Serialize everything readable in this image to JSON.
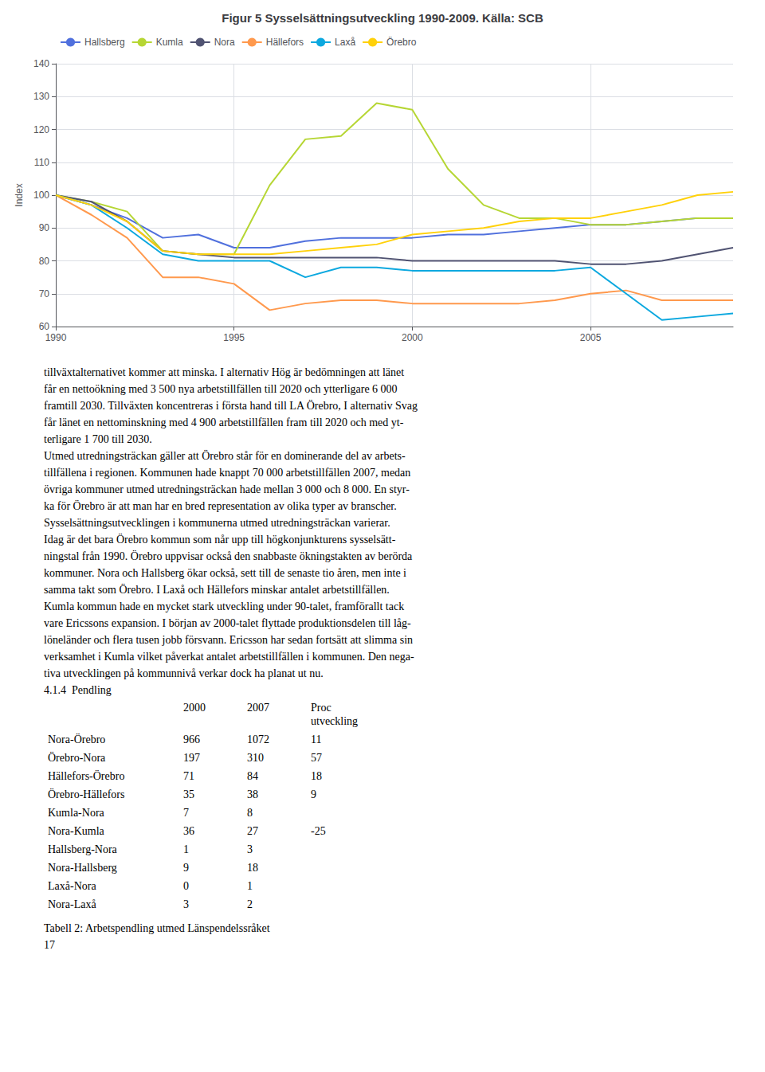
{
  "chart_data": {
    "type": "line",
    "title": "Figur 5 Sysselsättningsutveckling 1990-2009. Källa: SCB",
    "y_label": "Index",
    "x": [
      1990,
      1991,
      1992,
      1993,
      1994,
      1995,
      1996,
      1997,
      1998,
      1999,
      2000,
      2001,
      2002,
      2003,
      2004,
      2005,
      2006,
      2007,
      2008,
      2009
    ],
    "series": [
      {
        "name": "Hallsberg",
        "values": [
          100,
          97,
          93,
          87,
          88,
          84,
          84,
          86,
          87,
          87,
          87,
          88,
          88,
          89,
          90,
          91,
          91,
          92,
          93,
          93
        ]
      },
      {
        "name": "Kumla",
        "values": [
          100,
          98,
          95,
          83,
          82,
          82,
          103,
          117,
          118,
          128,
          126,
          108,
          97,
          93,
          93,
          91,
          91,
          92,
          93,
          93
        ]
      },
      {
        "name": "Nora",
        "values": [
          100,
          98,
          92,
          83,
          82,
          81,
          81,
          81,
          81,
          81,
          80,
          80,
          80,
          80,
          80,
          79,
          79,
          80,
          82,
          84
        ]
      },
      {
        "name": "Hällefors",
        "values": [
          100,
          94,
          87,
          75,
          75,
          73,
          65,
          67,
          68,
          68,
          67,
          67,
          67,
          67,
          68,
          70,
          71,
          68,
          68,
          68
        ]
      },
      {
        "name": "Laxå",
        "values": [
          100,
          97,
          90,
          82,
          80,
          80,
          80,
          75,
          78,
          78,
          77,
          77,
          77,
          77,
          77,
          78,
          70,
          62,
          63,
          64
        ]
      },
      {
        "name": "Örebro",
        "values": [
          100,
          97,
          92,
          83,
          82,
          82,
          82,
          83,
          84,
          85,
          88,
          89,
          90,
          92,
          93,
          93,
          95,
          97,
          100,
          101
        ]
      }
    ],
    "xlim": [
      1990,
      2009
    ],
    "xticks": [
      1990,
      1995,
      2000,
      2005
    ],
    "ylim": [
      60,
      140
    ],
    "yticks": [
      60,
      70,
      80,
      90,
      100,
      110,
      120,
      130,
      140
    ],
    "grid": true,
    "legend": "upper left",
    "annotations": [
      "tillväxtalternativet kommer att minska. I alternativ Hög är bedömningen att länet",
      "får en nettoökning med 3 500 nya arbetstillfällen till 2020 och ytterligare 6 000",
      "framtill 2030. Tillväxten koncentreras i första hand till LA Örebro, I alternativ Svag",
      "får länet en nettominskning med 4 900 arbetstillfällen fram till 2020 och med yt-",
      "terligare 1 700 till 2030.",
      "Utmed utredningsträckan gäller att Örebro står för en dominerande del av arbets-",
      "tillfällena i regionen. Kommunen hade knappt 70 000 arbetstillfällen 2007, medan",
      "övriga kommuner utmed utredningsträckan hade mellan 3 000 och 8 000. En styr-",
      "ka för Örebro är att man har en bred representation av olika typer av branscher.",
      "Sysselsättningsutvecklingen i kommunerna utmed utredningsträckan varierar.",
      "Idag är det bara Örebro kommun som når upp till högkonjunkturens sysselsätt-",
      "ningstal från 1990. Örebro uppvisar också den snabbaste ökningstakten av berörda",
      "kommuner. Nora och Hallsberg ökar också, sett till de senaste tio åren, men inte i",
      "samma takt som Örebro. I Laxå och Hällefors minskar antalet arbetstillfällen.",
      "Kumla kommun hade en mycket stark utveckling under 90-talet, framförallt tack",
      "vare Ericssons expansion. I början av 2000-talet flyttade produktionsdelen till låg-",
      "löneländer och flera tusen jobb försvann. Ericsson har sedan fortsätt att slimma sin",
      "verksamhet i Kumla vilket påverkat antalet arbetstillfällen i kommunen. Den nega-",
      "tiva utvecklingen på kommunnivå verkar dock ha planat ut nu.",
      "4.1.4  Pendling",
      [
        null,
        "2000",
        "2007",
        "Proc\nutveckling"
      ],
      [
        "Nora-Örebro",
        "966",
        "1072",
        "11"
      ],
      [
        "Örebro-Nora",
        "197",
        "310",
        "57"
      ],
      [
        "Hällefors-Örebro",
        "71",
        "84",
        "18"
      ],
      [
        "Örebro-Hällefors",
        "35",
        "38",
        "9"
      ],
      [
        "Kumla-Nora",
        "7",
        "8"
      ],
      [
        "Nora-Kumla",
        "36",
        "27",
        "-25"
      ],
      [
        "Hallsberg-Nora",
        "1",
        "3"
      ],
      [
        "Nora-Hallsberg",
        "9",
        "18"
      ],
      [
        "Laxå-Nora",
        "0",
        "1"
      ],
      [
        "Nora-Laxå",
        "3",
        "2"
      ],
      "Tabell 2: Arbetspendling utmed Länspendelssråket",
      "17"
    ]
  }
}
